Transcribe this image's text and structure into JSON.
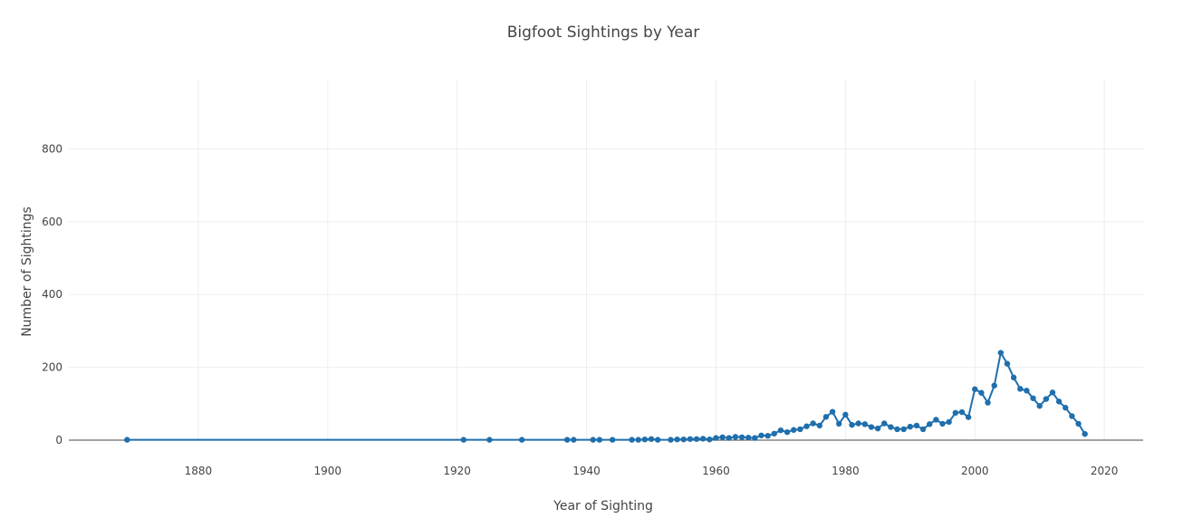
{
  "chart_data": {
    "type": "line",
    "title": "Bigfoot Sightings by Year",
    "xlabel": "Year of Sighting",
    "ylabel": "Number of Sightings",
    "xlim": [
      1860,
      2026
    ],
    "ylim": [
      0,
      990
    ],
    "xticks": [
      1880,
      1900,
      1920,
      1940,
      1960,
      1980,
      2000,
      2020
    ],
    "yticks": [
      0,
      200,
      400,
      600,
      800
    ],
    "grid": true,
    "legend": "none",
    "line_color": "#1f6fad",
    "series": [
      {
        "x": [
          1869,
          1921,
          1925,
          1930,
          1937,
          1938,
          1941,
          1942,
          1944,
          1947,
          1948,
          1949,
          1950,
          1951,
          1953,
          1954,
          1955,
          1956,
          1957,
          1958,
          1959,
          1960,
          1961,
          1962,
          1963,
          1964,
          1965,
          1966,
          1967,
          1968,
          1969,
          1970,
          1971,
          1972,
          1973,
          1974,
          1975,
          1976,
          1977,
          1978,
          1979,
          1980,
          1981,
          1982,
          1983,
          1984,
          1985,
          1986,
          1987,
          1988,
          1989,
          1990,
          1991,
          1992,
          1993,
          1994,
          1995,
          1996,
          1997,
          1998,
          1999,
          2000,
          2001,
          2002,
          2003,
          2004,
          2005,
          2006,
          2007,
          2008,
          2009,
          2010,
          2011,
          2012,
          2013,
          2014,
          2015,
          2016,
          2017
        ],
        "values": [
          1,
          1,
          1,
          1,
          1,
          1,
          1,
          1,
          1,
          1,
          1,
          2,
          3,
          1,
          1,
          2,
          2,
          3,
          3,
          4,
          2,
          6,
          8,
          6,
          9,
          8,
          7,
          6,
          13,
          12,
          18,
          27,
          22,
          28,
          30,
          38,
          46,
          40,
          64,
          78,
          45,
          70,
          42,
          46,
          44,
          36,
          32,
          46,
          36,
          30,
          30,
          37,
          40,
          30,
          44,
          56,
          45,
          50,
          75,
          77,
          63,
          140,
          130,
          103,
          150,
          240,
          210,
          172,
          141,
          136,
          115,
          94,
          113,
          131,
          106,
          89,
          66,
          45,
          17
        ]
      }
    ]
  }
}
